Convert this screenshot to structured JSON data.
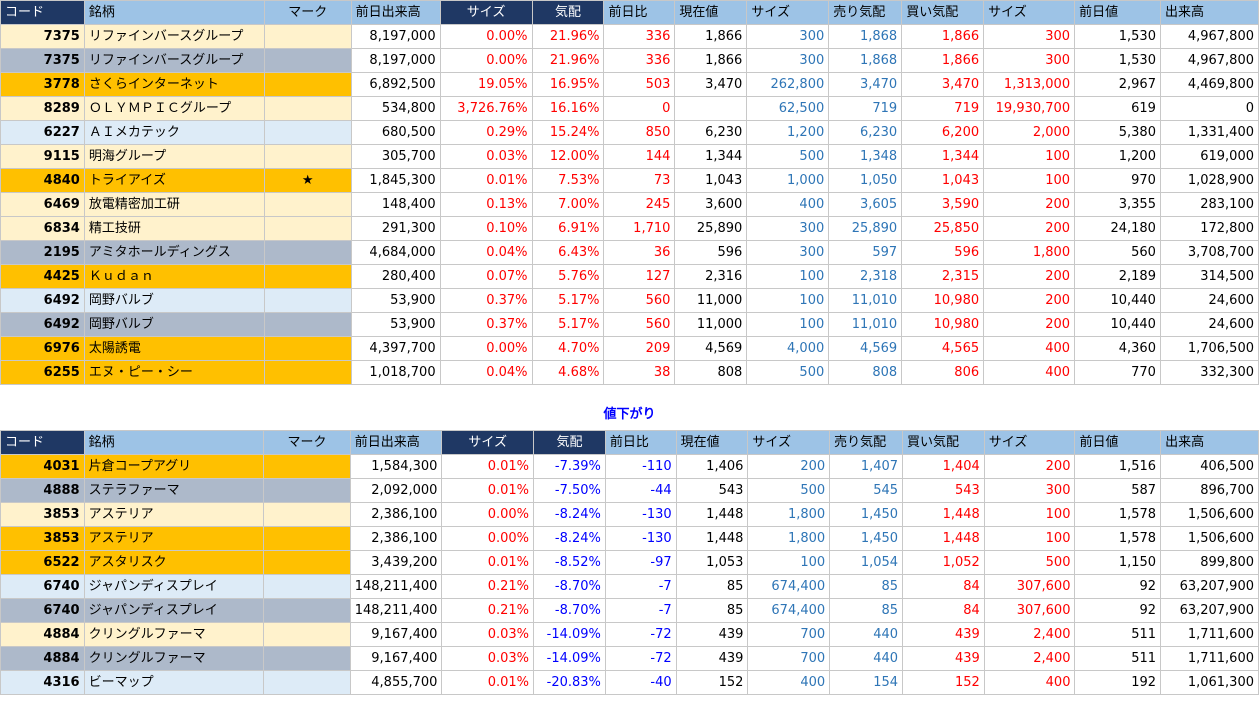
{
  "headers": [
    "コード",
    "銘柄",
    "マーク",
    "前日出来高",
    "サイズ",
    "気配",
    "前日比",
    "現在値",
    "サイズ",
    "売り気配",
    "買い気配",
    "サイズ",
    "前日値",
    "出来高"
  ],
  "section_label": "値下がり",
  "colors": {
    "header_dark": "#1f3864",
    "header_light": "#9dc3e6",
    "lightyellow": "#fff2cc",
    "gray": "#adb9ca",
    "orange": "#ffc000",
    "lightblue": "#ddebf7",
    "red": "#ff0000",
    "blue": "#2e75b6",
    "negative_blue": "#0000ff"
  },
  "gainers": [
    {
      "bg": "lightyellow",
      "code": "7375",
      "name": "リファインバースグループ",
      "mark": "",
      "prev_vol": "8,197,000",
      "size1": "0.00%",
      "kehai": "21.96%",
      "change": "336",
      "price": "1,866",
      "size2": "300",
      "ask": "1,868",
      "bid": "1,866",
      "size3": "300",
      "prev_price": "1,530",
      "volume": "4,967,800"
    },
    {
      "bg": "gray",
      "code": "7375",
      "name": "リファインバースグループ",
      "mark": "",
      "prev_vol": "8,197,000",
      "size1": "0.00%",
      "kehai": "21.96%",
      "change": "336",
      "price": "1,866",
      "size2": "300",
      "ask": "1,868",
      "bid": "1,866",
      "size3": "300",
      "prev_price": "1,530",
      "volume": "4,967,800"
    },
    {
      "bg": "orange",
      "code": "3778",
      "name": "さくらインターネット",
      "mark": "",
      "prev_vol": "6,892,500",
      "size1": "19.05%",
      "kehai": "16.95%",
      "change": "503",
      "price": "3,470",
      "size2": "262,800",
      "ask": "3,470",
      "bid": "3,470",
      "size3": "1,313,000",
      "prev_price": "2,967",
      "volume": "4,469,800"
    },
    {
      "bg": "lightyellow",
      "code": "8289",
      "name": "ＯＬＹＭＰＩＣグループ",
      "mark": "",
      "prev_vol": "534,800",
      "size1": "3,726.76%",
      "kehai": "16.16%",
      "change": "0",
      "price": "",
      "size2": "62,500",
      "ask": "719",
      "bid": "719",
      "size3": "19,930,700",
      "prev_price": "619",
      "volume": "0"
    },
    {
      "bg": "lightblue",
      "code": "6227",
      "name": "ＡＩメカテック",
      "mark": "",
      "prev_vol": "680,500",
      "size1": "0.29%",
      "kehai": "15.24%",
      "change": "850",
      "price": "6,230",
      "size2": "1,200",
      "ask": "6,230",
      "bid": "6,200",
      "size3": "2,000",
      "prev_price": "5,380",
      "volume": "1,331,400"
    },
    {
      "bg": "lightyellow",
      "code": "9115",
      "name": "明海グループ",
      "mark": "",
      "prev_vol": "305,700",
      "size1": "0.03%",
      "kehai": "12.00%",
      "change": "144",
      "price": "1,344",
      "size2": "500",
      "ask": "1,348",
      "bid": "1,344",
      "size3": "100",
      "prev_price": "1,200",
      "volume": "619,000"
    },
    {
      "bg": "orange",
      "code": "4840",
      "name": "トライアイズ",
      "mark": "★",
      "prev_vol": "1,845,300",
      "size1": "0.01%",
      "kehai": "7.53%",
      "change": "73",
      "price": "1,043",
      "size2": "1,000",
      "ask": "1,050",
      "bid": "1,043",
      "size3": "100",
      "prev_price": "970",
      "volume": "1,028,900"
    },
    {
      "bg": "lightyellow",
      "code": "6469",
      "name": "放電精密加工研",
      "mark": "",
      "prev_vol": "148,400",
      "size1": "0.13%",
      "kehai": "7.00%",
      "change": "245",
      "price": "3,600",
      "size2": "400",
      "ask": "3,605",
      "bid": "3,590",
      "size3": "200",
      "prev_price": "3,355",
      "volume": "283,100"
    },
    {
      "bg": "lightyellow",
      "code": "6834",
      "name": "精工技研",
      "mark": "",
      "prev_vol": "291,300",
      "size1": "0.10%",
      "kehai": "6.91%",
      "change": "1,710",
      "price": "25,890",
      "size2": "300",
      "ask": "25,890",
      "bid": "25,850",
      "size3": "200",
      "prev_price": "24,180",
      "volume": "172,800"
    },
    {
      "bg": "gray",
      "code": "2195",
      "name": "アミタホールディングス",
      "mark": "",
      "prev_vol": "4,684,000",
      "size1": "0.04%",
      "kehai": "6.43%",
      "change": "36",
      "price": "596",
      "size2": "300",
      "ask": "597",
      "bid": "596",
      "size3": "1,800",
      "prev_price": "560",
      "volume": "3,708,700"
    },
    {
      "bg": "orange",
      "code": "4425",
      "name": "Ｋｕｄａｎ",
      "mark": "",
      "prev_vol": "280,400",
      "size1": "0.07%",
      "kehai": "5.76%",
      "change": "127",
      "price": "2,316",
      "size2": "100",
      "ask": "2,318",
      "bid": "2,315",
      "size3": "200",
      "prev_price": "2,189",
      "volume": "314,500"
    },
    {
      "bg": "lightblue",
      "code": "6492",
      "name": "岡野バルブ",
      "mark": "",
      "prev_vol": "53,900",
      "size1": "0.37%",
      "kehai": "5.17%",
      "change": "560",
      "price": "11,000",
      "size2": "100",
      "ask": "11,010",
      "bid": "10,980",
      "size3": "200",
      "prev_price": "10,440",
      "volume": "24,600"
    },
    {
      "bg": "gray",
      "code": "6492",
      "name": "岡野バルブ",
      "mark": "",
      "prev_vol": "53,900",
      "size1": "0.37%",
      "kehai": "5.17%",
      "change": "560",
      "price": "11,000",
      "size2": "100",
      "ask": "11,010",
      "bid": "10,980",
      "size3": "200",
      "prev_price": "10,440",
      "volume": "24,600"
    },
    {
      "bg": "orange",
      "code": "6976",
      "name": "太陽誘電",
      "mark": "",
      "prev_vol": "4,397,700",
      "size1": "0.00%",
      "kehai": "4.70%",
      "change": "209",
      "price": "4,569",
      "size2": "4,000",
      "ask": "4,569",
      "bid": "4,565",
      "size3": "400",
      "prev_price": "4,360",
      "volume": "1,706,500"
    },
    {
      "bg": "orange",
      "code": "6255",
      "name": "エヌ・ピー・シー",
      "mark": "",
      "prev_vol": "1,018,700",
      "size1": "0.04%",
      "kehai": "4.68%",
      "change": "38",
      "price": "808",
      "size2": "500",
      "ask": "808",
      "bid": "806",
      "size3": "400",
      "prev_price": "770",
      "volume": "332,300"
    }
  ],
  "losers": [
    {
      "bg": "orange",
      "code": "4031",
      "name": "片倉コープアグリ",
      "mark": "",
      "prev_vol": "1,584,300",
      "size1": "0.01%",
      "kehai": "-7.39%",
      "change": "-110",
      "price": "1,406",
      "size2": "200",
      "ask": "1,407",
      "bid": "1,404",
      "size3": "200",
      "prev_price": "1,516",
      "volume": "406,500"
    },
    {
      "bg": "gray",
      "code": "4888",
      "name": "ステラファーマ",
      "mark": "",
      "prev_vol": "2,092,000",
      "size1": "0.01%",
      "kehai": "-7.50%",
      "change": "-44",
      "price": "543",
      "size2": "500",
      "ask": "545",
      "bid": "543",
      "size3": "300",
      "prev_price": "587",
      "volume": "896,700"
    },
    {
      "bg": "lightyellow",
      "code": "3853",
      "name": "アステリア",
      "mark": "",
      "prev_vol": "2,386,100",
      "size1": "0.00%",
      "kehai": "-8.24%",
      "change": "-130",
      "price": "1,448",
      "size2": "1,800",
      "ask": "1,450",
      "bid": "1,448",
      "size3": "100",
      "prev_price": "1,578",
      "volume": "1,506,600"
    },
    {
      "bg": "orange",
      "code": "3853",
      "name": "アステリア",
      "mark": "",
      "prev_vol": "2,386,100",
      "size1": "0.00%",
      "kehai": "-8.24%",
      "change": "-130",
      "price": "1,448",
      "size2": "1,800",
      "ask": "1,450",
      "bid": "1,448",
      "size3": "100",
      "prev_price": "1,578",
      "volume": "1,506,600"
    },
    {
      "bg": "orange",
      "code": "6522",
      "name": "アスタリスク",
      "mark": "",
      "prev_vol": "3,439,200",
      "size1": "0.01%",
      "kehai": "-8.52%",
      "change": "-97",
      "price": "1,053",
      "size2": "100",
      "ask": "1,054",
      "bid": "1,052",
      "size3": "500",
      "prev_price": "1,150",
      "volume": "899,800"
    },
    {
      "bg": "lightblue",
      "code": "6740",
      "name": "ジャパンディスプレイ",
      "mark": "",
      "prev_vol": "148,211,400",
      "size1": "0.21%",
      "kehai": "-8.70%",
      "change": "-7",
      "price": "85",
      "size2": "674,400",
      "ask": "85",
      "bid": "84",
      "size3": "307,600",
      "prev_price": "92",
      "volume": "63,207,900"
    },
    {
      "bg": "gray",
      "code": "6740",
      "name": "ジャパンディスプレイ",
      "mark": "",
      "prev_vol": "148,211,400",
      "size1": "0.21%",
      "kehai": "-8.70%",
      "change": "-7",
      "price": "85",
      "size2": "674,400",
      "ask": "85",
      "bid": "84",
      "size3": "307,600",
      "prev_price": "92",
      "volume": "63,207,900"
    },
    {
      "bg": "lightyellow",
      "code": "4884",
      "name": "クリングルファーマ",
      "mark": "",
      "prev_vol": "9,167,400",
      "size1": "0.03%",
      "kehai": "-14.09%",
      "change": "-72",
      "price": "439",
      "size2": "700",
      "ask": "440",
      "bid": "439",
      "size3": "2,400",
      "prev_price": "511",
      "volume": "1,711,600"
    },
    {
      "bg": "gray",
      "code": "4884",
      "name": "クリングルファーマ",
      "mark": "",
      "prev_vol": "9,167,400",
      "size1": "0.03%",
      "kehai": "-14.09%",
      "change": "-72",
      "price": "439",
      "size2": "700",
      "ask": "440",
      "bid": "439",
      "size3": "2,400",
      "prev_price": "511",
      "volume": "1,711,600"
    },
    {
      "bg": "lightblue",
      "code": "4316",
      "name": "ビーマップ",
      "mark": "",
      "prev_vol": "4,855,700",
      "size1": "0.01%",
      "kehai": "-20.83%",
      "change": "-40",
      "price": "152",
      "size2": "400",
      "ask": "154",
      "bid": "152",
      "size3": "400",
      "prev_price": "192",
      "volume": "1,061,300"
    }
  ]
}
